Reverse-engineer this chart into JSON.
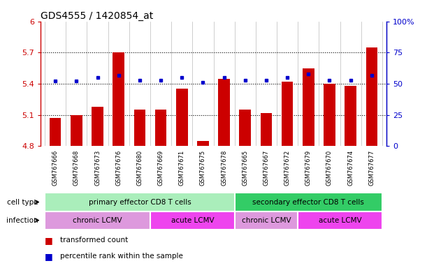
{
  "title": "GDS4555 / 1420854_at",
  "samples": [
    "GSM767666",
    "GSM767668",
    "GSM767673",
    "GSM767676",
    "GSM767680",
    "GSM767669",
    "GSM767671",
    "GSM767675",
    "GSM767678",
    "GSM767665",
    "GSM767667",
    "GSM767672",
    "GSM767679",
    "GSM767670",
    "GSM767674",
    "GSM767677"
  ],
  "bar_values": [
    5.07,
    5.1,
    5.18,
    5.7,
    5.15,
    5.15,
    5.35,
    4.85,
    5.45,
    5.15,
    5.12,
    5.42,
    5.55,
    5.4,
    5.38,
    5.75
  ],
  "dot_percentiles": [
    52,
    52,
    55,
    57,
    53,
    53,
    55,
    51,
    55,
    53,
    53,
    55,
    58,
    53,
    53,
    57
  ],
  "bar_color": "#cc0000",
  "dot_color": "#0000cc",
  "ymin": 4.8,
  "ymax": 6.0,
  "yticks": [
    4.8,
    5.1,
    5.4,
    5.7,
    6.0
  ],
  "ytick_labels": [
    "4.8",
    "5.1",
    "5.4",
    "5.7",
    "6"
  ],
  "y2min": 0,
  "y2max": 100,
  "y2ticks": [
    0,
    25,
    50,
    75,
    100
  ],
  "y2tick_labels": [
    "0",
    "25",
    "50",
    "75",
    "100%"
  ],
  "hlines": [
    5.1,
    5.4,
    5.7
  ],
  "cell_type_groups": [
    {
      "label": "primary effector CD8 T cells",
      "start": 0,
      "end": 8,
      "color": "#aaeebb"
    },
    {
      "label": "secondary effector CD8 T cells",
      "start": 9,
      "end": 15,
      "color": "#33cc66"
    }
  ],
  "infection_groups": [
    {
      "label": "chronic LCMV",
      "start": 0,
      "end": 4,
      "color": "#dd99dd"
    },
    {
      "label": "acute LCMV",
      "start": 5,
      "end": 8,
      "color": "#ee44ee"
    },
    {
      "label": "chronic LCMV",
      "start": 9,
      "end": 11,
      "color": "#dd99dd"
    },
    {
      "label": "acute LCMV",
      "start": 12,
      "end": 15,
      "color": "#ee44ee"
    }
  ],
  "legend_items": [
    {
      "label": "transformed count",
      "color": "#cc0000"
    },
    {
      "label": "percentile rank within the sample",
      "color": "#0000cc"
    }
  ],
  "bar_width": 0.55,
  "bg_color": "#dddddd"
}
